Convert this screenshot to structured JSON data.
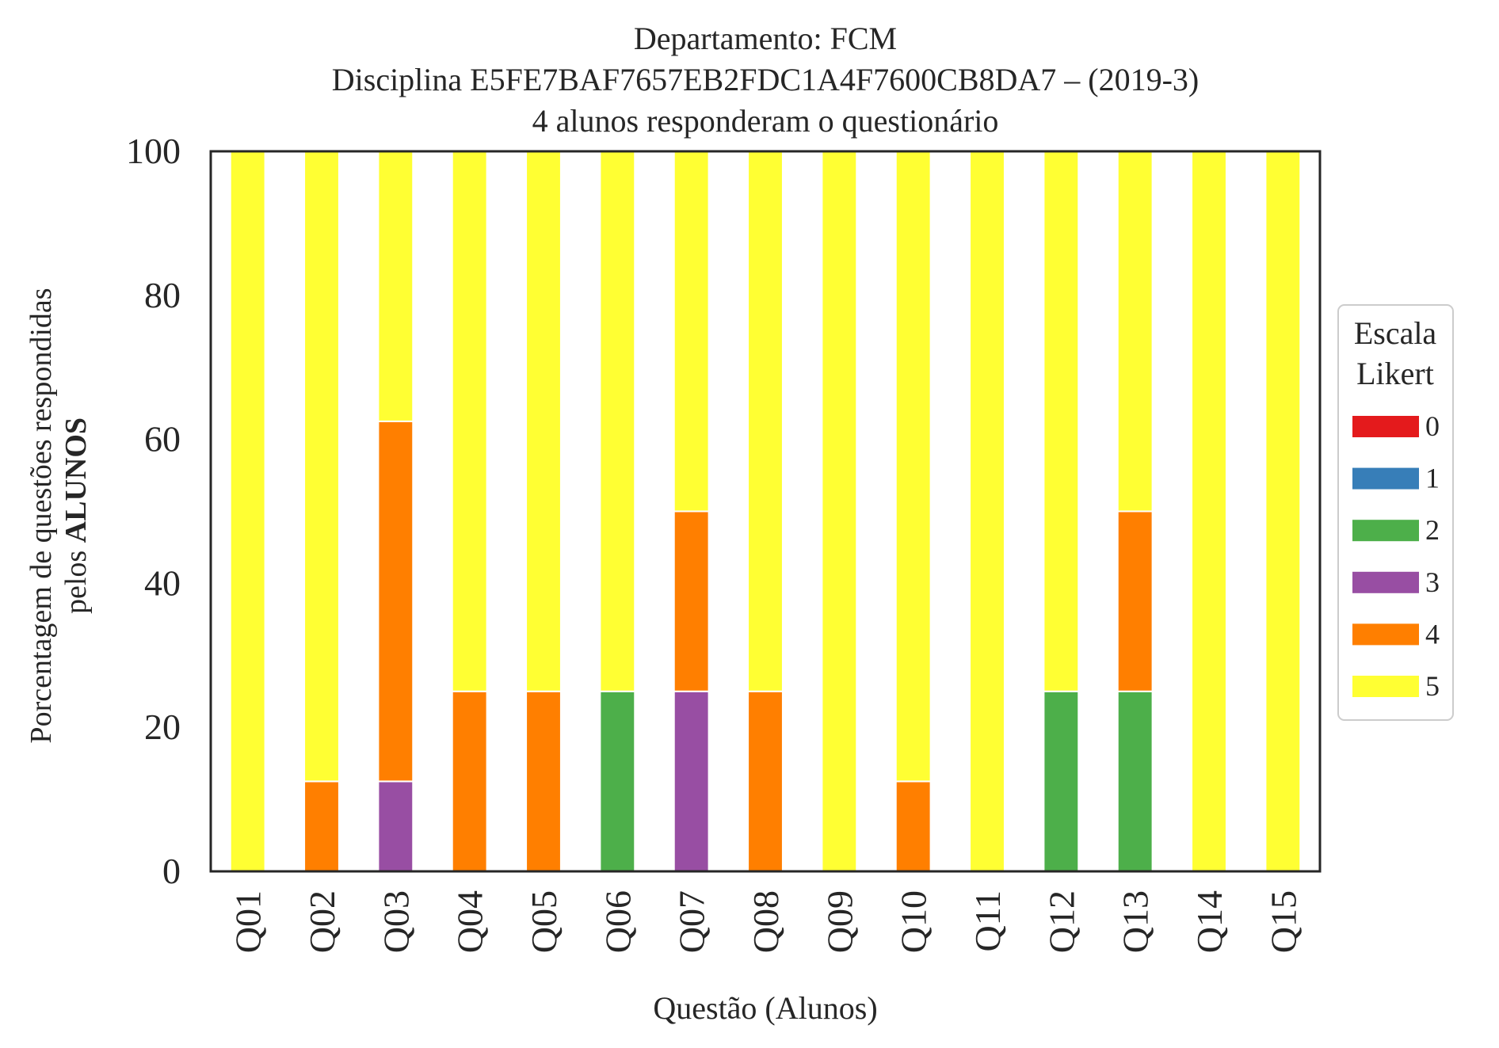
{
  "chart_data": {
    "type": "bar",
    "stacked": true,
    "title_lines": [
      "Departamento: FCM",
      "Disciplina E5FE7BAF7657EB2FDC1A4F7600CB8DA7 – (2019-3)",
      "4 alunos responderam o questionário"
    ],
    "xlabel": "Questão (Alunos)",
    "ylabel_line1": "Porcentagem de questões respondidas",
    "ylabel_line2_prefix": "pelos ",
    "ylabel_line2_bold": "ALUNOS",
    "ylim": [
      0,
      100
    ],
    "yticks": [
      "0",
      "20",
      "40",
      "60",
      "80",
      "100"
    ],
    "categories": [
      "Q01",
      "Q02",
      "Q03",
      "Q04",
      "Q05",
      "Q06",
      "Q07",
      "Q08",
      "Q09",
      "Q10",
      "Q11",
      "Q12",
      "Q13",
      "Q14",
      "Q15"
    ],
    "legend": {
      "title_lines": [
        "Escala",
        "Likert"
      ],
      "placement": "right-center"
    },
    "grid": false,
    "series": [
      {
        "name": "0",
        "color": "#e41a1c",
        "values": [
          0,
          0,
          0,
          0,
          0,
          0,
          0,
          0,
          0,
          0,
          0,
          0,
          0,
          0,
          0
        ]
      },
      {
        "name": "1",
        "color": "#377eb8",
        "values": [
          0,
          0,
          0,
          0,
          0,
          0,
          0,
          0,
          0,
          0,
          0,
          0,
          0,
          0,
          0
        ]
      },
      {
        "name": "2",
        "color": "#4daf4a",
        "values": [
          0,
          0,
          0,
          0,
          0,
          25,
          0,
          0,
          0,
          0,
          0,
          25,
          25,
          0,
          0
        ]
      },
      {
        "name": "3",
        "color": "#984ea3",
        "values": [
          0,
          0,
          12.5,
          0,
          0,
          0,
          25,
          0,
          0,
          0,
          0,
          0,
          0,
          0,
          0
        ]
      },
      {
        "name": "4",
        "color": "#ff7f00",
        "values": [
          0,
          12.5,
          50,
          25,
          25,
          0,
          25,
          25,
          0,
          12.5,
          0,
          0,
          25,
          0,
          0
        ]
      },
      {
        "name": "5",
        "color": "#ffff33",
        "values": [
          100,
          87.5,
          37.5,
          75,
          75,
          75,
          50,
          75,
          100,
          87.5,
          100,
          75,
          50,
          100,
          100
        ]
      }
    ]
  }
}
